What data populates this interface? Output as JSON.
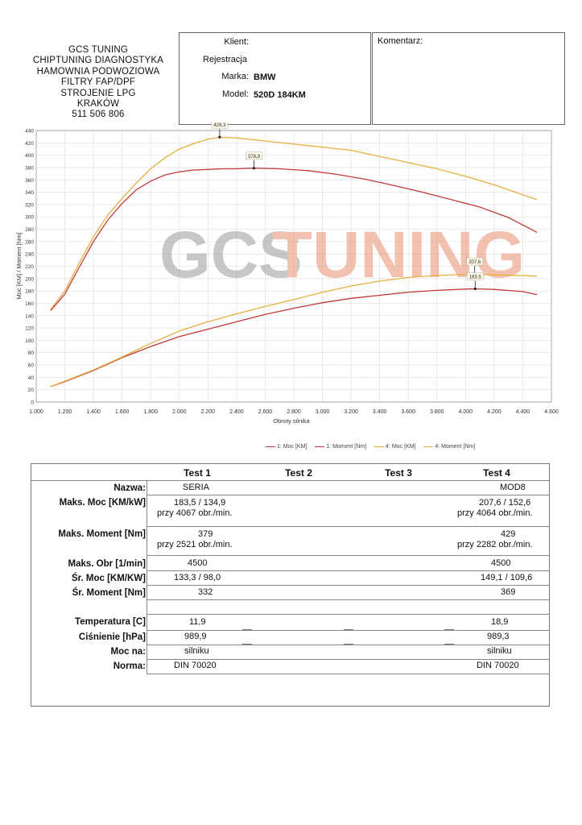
{
  "company": {
    "lines": [
      "GCS TUNING",
      "CHIPTUNING DIAGNOSTYKA",
      "HAMOWNIA PODWOZIOWA",
      "FILTRY FAP/DPF",
      "STROJENIE LPG",
      "KRAKÓW",
      "511 506 806"
    ]
  },
  "client": {
    "klient_label": "Klient:",
    "rejestracja_label": "Rejestracja",
    "marka_label": "Marka:",
    "marka_value": "BMW",
    "model_label": "Model:",
    "model_value": "520D 184KM"
  },
  "comment": {
    "label": "Komentarz:"
  },
  "watermark": {
    "part1": "GCS",
    "part2": "TUNING"
  },
  "chart_data": {
    "type": "line",
    "xlabel": "Obroty silnika",
    "ylabel": "Moc [KM] / Moment [Nm]",
    "xlim": [
      1000,
      4600
    ],
    "ylim": [
      0,
      440
    ],
    "x_ticks": [
      "1.000",
      "1.200",
      "1.400",
      "1.600",
      "1.800",
      "2.000",
      "2.200",
      "2.400",
      "2.600",
      "2.800",
      "3.000",
      "3.200",
      "3.400",
      "3.600",
      "3.800",
      "4.000",
      "4.200",
      "4.400",
      "4.600"
    ],
    "y_ticks": [
      "0",
      "20",
      "40",
      "60",
      "80",
      "100",
      "120",
      "140",
      "160",
      "180",
      "200",
      "220",
      "240",
      "260",
      "280",
      "300",
      "320",
      "340",
      "360",
      "380",
      "400",
      "420",
      "440"
    ],
    "series": [
      {
        "name": "1: Moc [KM]",
        "color": "#c03a3a",
        "x": [
          1100,
          1200,
          1400,
          1600,
          1800,
          2000,
          2200,
          2400,
          2600,
          2800,
          3000,
          3200,
          3400,
          3600,
          3800,
          4000,
          4067,
          4200,
          4400,
          4500
        ],
        "y": [
          25,
          33,
          51,
          72,
          90,
          106,
          118,
          130,
          142,
          152,
          161,
          168,
          173,
          178,
          181,
          183,
          183.5,
          182.5,
          179,
          174
        ]
      },
      {
        "name": "1: Moment [Nm]",
        "color": "#c03a3a",
        "x": [
          1100,
          1200,
          1300,
          1400,
          1500,
          1600,
          1700,
          1800,
          1900,
          2000,
          2100,
          2200,
          2300,
          2400,
          2521,
          2700,
          2900,
          3100,
          3300,
          3500,
          3700,
          3900,
          4100,
          4300,
          4500
        ],
        "y": [
          148,
          175,
          218,
          260,
          295,
          322,
          344,
          358,
          368,
          373,
          376,
          377,
          378,
          378,
          379,
          378,
          375,
          369,
          361,
          351,
          340,
          328,
          316,
          299,
          275
        ]
      },
      {
        "name": "4: Moc [KM]",
        "color": "#e6b040",
        "x": [
          1100,
          1200,
          1400,
          1600,
          1800,
          2000,
          2200,
          2400,
          2600,
          2800,
          3000,
          3200,
          3400,
          3600,
          3800,
          4000,
          4064,
          4200,
          4400,
          4500
        ],
        "y": [
          25,
          34,
          52,
          73,
          95,
          115,
          130,
          143,
          155,
          166,
          178,
          188,
          196,
          202,
          205,
          207,
          207.6,
          206,
          205,
          204
        ]
      },
      {
        "name": "4: Moment [Nm]",
        "color": "#e6b040",
        "x": [
          1100,
          1200,
          1300,
          1400,
          1500,
          1600,
          1700,
          1800,
          1900,
          2000,
          2100,
          2200,
          2282,
          2400,
          2600,
          2800,
          3000,
          3200,
          3400,
          3600,
          3800,
          4000,
          4200,
          4400,
          4500
        ],
        "y": [
          150,
          180,
          225,
          268,
          303,
          330,
          355,
          378,
          396,
          410,
          419,
          426,
          429,
          428,
          423,
          418,
          413,
          408,
          398,
          388,
          378,
          366,
          352,
          336,
          328
        ]
      }
    ],
    "annotations": [
      {
        "label": "429,3",
        "x": 2282,
        "y": 429.3,
        "series": "4: Moment [Nm]"
      },
      {
        "label": "378,9",
        "x": 2521,
        "y": 378.9,
        "series": "1: Moment [Nm]"
      },
      {
        "label": "207,6",
        "x": 4064,
        "y": 207.6,
        "series": "4: Moc [KM]"
      },
      {
        "label": "183,5",
        "x": 4067,
        "y": 183.5,
        "series": "1: Moc [KM]"
      }
    ],
    "legend_placement": "bottom",
    "grid": true
  },
  "table": {
    "headers": [
      "Test 1",
      "Test 2",
      "Test 3",
      "Test 4"
    ],
    "rows": [
      {
        "label": "Nazwa:",
        "t1": [
          "SERIA"
        ],
        "t4": [
          "MOD8"
        ]
      },
      {
        "label": "Maks. Moc [KM/kW]",
        "t1": [
          "183,5 / 134,9",
          "przy 4067 obr./min."
        ],
        "t4": [
          "207,6 / 152,6",
          "przy 4064 obr./min."
        ]
      },
      {
        "label": "Maks. Moment [Nm]",
        "t1": [
          "379",
          "przy 2521 obr./min."
        ],
        "t4": [
          "429",
          "przy 2282 obr./min."
        ]
      },
      {
        "label": "Maks. Obr [1/min]",
        "t1": [
          "4500"
        ],
        "t4": [
          "4500"
        ]
      },
      {
        "label": "Śr. Moc [KM/KW]",
        "t1": [
          "133,3 / 98,0"
        ],
        "t4": [
          "149,1 / 109,6"
        ]
      },
      {
        "label": "Śr. Moment [Nm]",
        "t1": [
          "332"
        ],
        "t4": [
          "369"
        ]
      },
      {
        "label": "Temperatura [C]",
        "t1": [
          "11,9"
        ],
        "t4": [
          "18,9"
        ]
      },
      {
        "label": "Ciśnienie [hPa]",
        "t1": [
          "989,9"
        ],
        "t4": [
          "989,3"
        ]
      },
      {
        "label": "Moc na:",
        "t1": [
          "silniku"
        ],
        "t4": [
          "silniku"
        ]
      },
      {
        "label": "Norma:",
        "t1": [
          "DIN 70020"
        ],
        "t4": [
          "DIN 70020"
        ]
      }
    ]
  }
}
